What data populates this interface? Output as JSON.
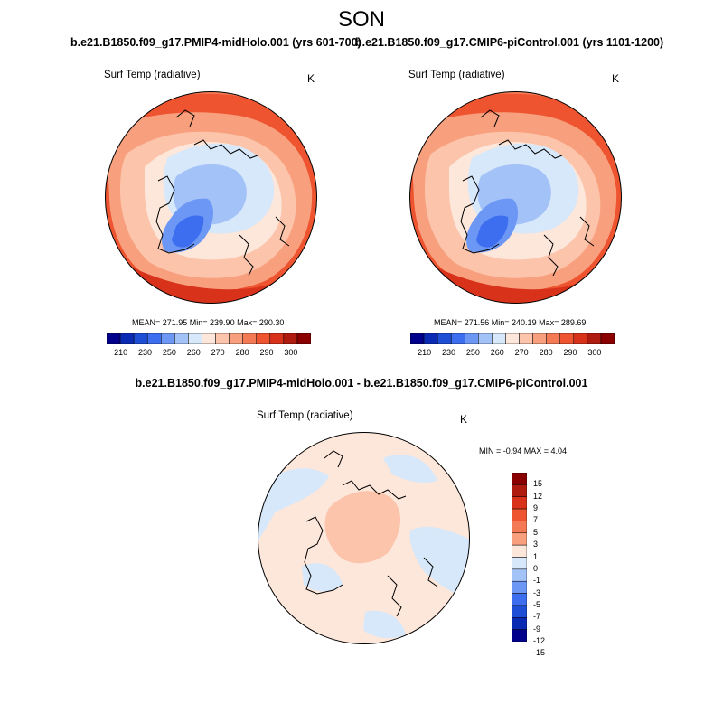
{
  "season": "SON",
  "panels": {
    "left": {
      "title": "b.e21.B1850.f09_g17.PMIP4-midHolo.001 (yrs 601-700)",
      "variable": "Surf Temp (radiative)",
      "unit": "K",
      "stats": "MEAN= 271.95   Min= 239.90   Max= 290.30"
    },
    "right": {
      "title": "b.e21.B1850.f09_g17.CMIP6-piControl.001 (yrs 1101-1200)",
      "variable": "Surf Temp (radiative)",
      "unit": "K",
      "stats": "MEAN= 271.56   Min= 240.19   Max= 289.69"
    },
    "diff": {
      "title": "b.e21.B1850.f09_g17.PMIP4-midHolo.001 - b.e21.B1850.f09_g17.CMIP6-piControl.001",
      "variable": "Surf Temp (radiative)",
      "unit": "K",
      "stats": "MIN =  -0.94 MAX =    4.04"
    }
  },
  "abs_colorbar": {
    "colors": [
      "#00008b",
      "#0a2ab4",
      "#1f4ed6",
      "#3d6ef0",
      "#6c97f5",
      "#a3c2f7",
      "#d6e8fa",
      "#fde6da",
      "#fbc4ab",
      "#f8a07e",
      "#f47a55",
      "#ee5430",
      "#d8321b",
      "#b01b0f",
      "#8a0000"
    ],
    "labels": [
      "210",
      "230",
      "250",
      "260",
      "270",
      "280",
      "290",
      "300"
    ]
  },
  "diff_colorbar": {
    "colors": [
      "#8a0000",
      "#b01b0f",
      "#d8321b",
      "#ee5430",
      "#f47a55",
      "#f8a07e",
      "#fde6da",
      "#d6e8fa",
      "#a3c2f7",
      "#6c97f5",
      "#3d6ef0",
      "#1f4ed6",
      "#0a2ab4",
      "#00008b"
    ],
    "labels": [
      "15",
      "12",
      "9",
      "7",
      "5",
      "3",
      "1",
      "0",
      "-1",
      "-3",
      "-5",
      "-7",
      "-9",
      "-12",
      "-15"
    ]
  }
}
